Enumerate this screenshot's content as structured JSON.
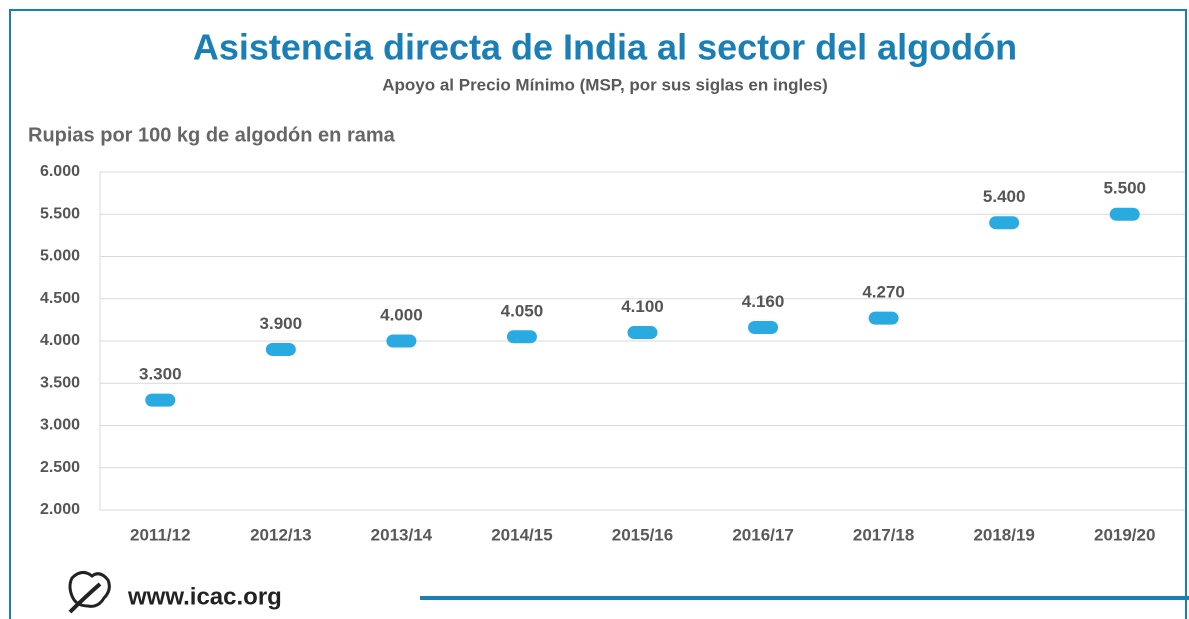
{
  "chart_data": {
    "type": "scatter",
    "title": "Asistencia directa de India al sector del algodón",
    "subtitle": "Apoyo al Precio Mínimo (MSP, por sus siglas en ingles)",
    "y_label": "Rupias por 100 kg de algodón en rama",
    "source": "www.icac.org",
    "categories": [
      "2011/12",
      "2012/13",
      "2013/14",
      "2014/15",
      "2015/16",
      "2016/17",
      "2017/18",
      "2018/19",
      "2019/20"
    ],
    "values": [
      3300,
      3900,
      4000,
      4050,
      4100,
      4160,
      4270,
      5400,
      5500
    ],
    "value_labels": [
      "3.300",
      "3.900",
      "4.000",
      "4.050",
      "4.100",
      "4.160",
      "4.270",
      "5.400",
      "5.500"
    ],
    "color": "#29abe2",
    "ylim": [
      2000,
      6000
    ],
    "yticks": [
      {
        "value": 2000,
        "label": "2.000"
      },
      {
        "value": 2500,
        "label": "2.500"
      },
      {
        "value": 3000,
        "label": "3.000"
      },
      {
        "value": 3500,
        "label": "3.500"
      },
      {
        "value": 4000,
        "label": "4.000"
      },
      {
        "value": 4500,
        "label": "4.500"
      },
      {
        "value": 5000,
        "label": "5.000"
      },
      {
        "value": 5500,
        "label": "5.500"
      },
      {
        "value": 6000,
        "label": "6.000"
      }
    ],
    "grid": true
  }
}
